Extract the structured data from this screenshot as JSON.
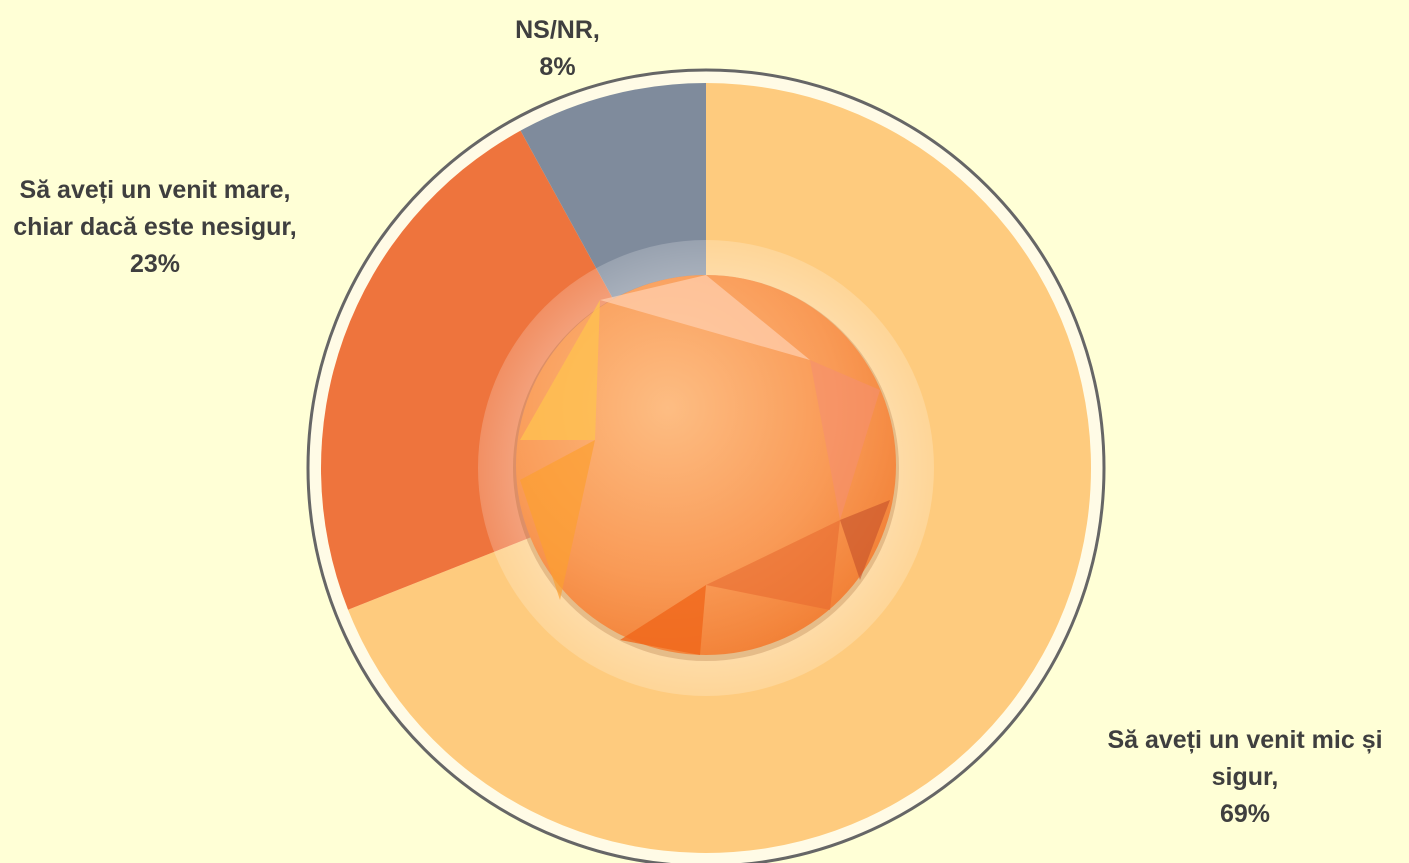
{
  "chart_data": {
    "type": "pie",
    "categories": [
      "Să aveți un venit mic și sigur,",
      "Să aveți un venit mare, chiar dacă este nesigur,",
      "NS/NR,"
    ],
    "values": [
      69,
      23,
      8
    ],
    "value_labels": [
      "69%",
      "23%",
      "8%"
    ],
    "colors": [
      "#fecb7e",
      "#ee743d",
      "#7f8b9c"
    ]
  }
}
